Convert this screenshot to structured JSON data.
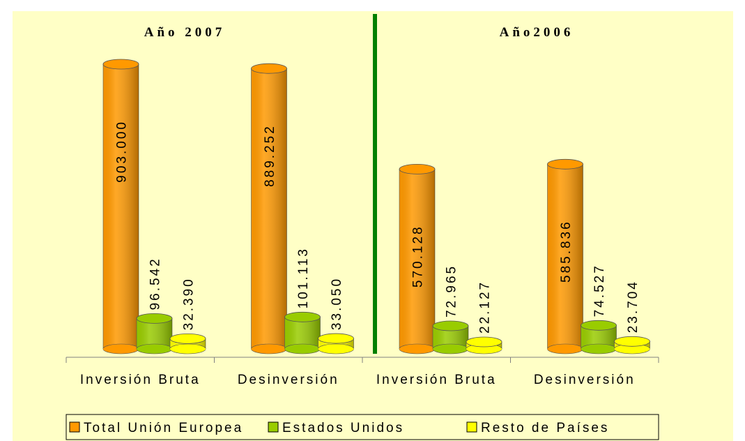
{
  "chart_data": {
    "type": "bar",
    "annotations": [
      "Año 2007",
      "Año2006"
    ],
    "categories": [
      "Inversión Bruta",
      "Desinversión",
      "Inversión Bruta",
      "Desinversión"
    ],
    "series": [
      {
        "name": "Total Unión Europea",
        "color": "#ff9900",
        "values": [
          903000,
          889252,
          570128,
          585836
        ],
        "value_labels": [
          "903.000",
          "889.252",
          "570.128",
          "585.836"
        ]
      },
      {
        "name": "Estados Unidos",
        "color": "#99cc00",
        "values": [
          96542,
          101113,
          72965,
          74527
        ],
        "value_labels": [
          "96.542",
          "101.113",
          "72.965",
          "74.527"
        ]
      },
      {
        "name": "Resto de Países",
        "color": "#ffff00",
        "values": [
          32390,
          33050,
          22127,
          23704
        ],
        "value_labels": [
          "32.390",
          "33.050",
          "22.127",
          "23.704"
        ]
      }
    ],
    "legend": "bottom"
  }
}
